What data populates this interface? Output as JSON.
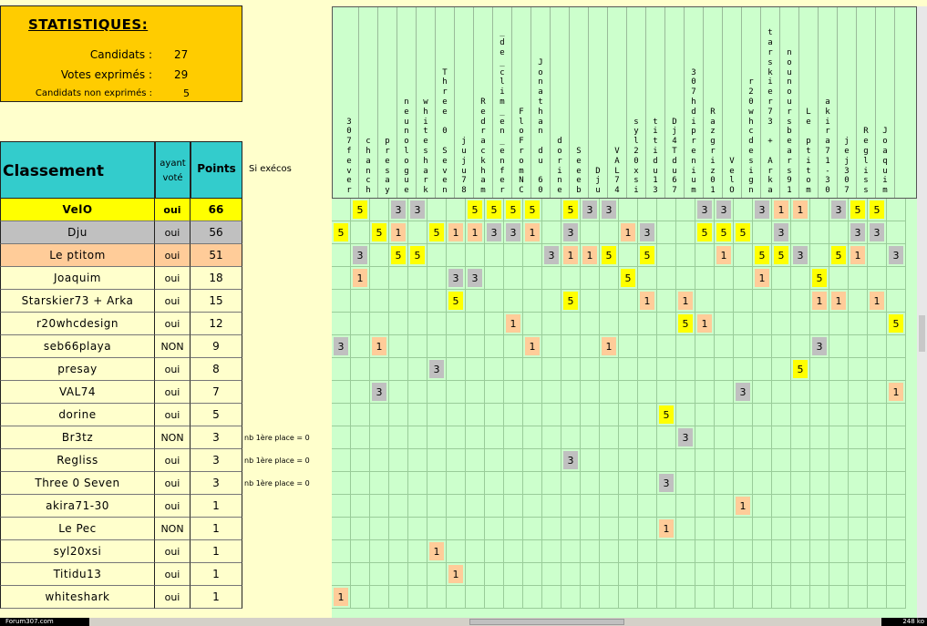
{
  "stats": {
    "title": "STATISTIQUES:",
    "rows": [
      {
        "label": "Candidats :",
        "value": "27"
      },
      {
        "label": "Votes exprimés :",
        "value": "29"
      },
      {
        "label": "Candidats non exprimés :",
        "value": "5"
      }
    ]
  },
  "ranking": {
    "headers": {
      "name": "Classement",
      "voted_line1": "ayant",
      "voted_line2": "voté",
      "points": "Points",
      "side": "Si exécos"
    },
    "tie_note": "nb 1ère place = 0",
    "rows": [
      {
        "name": "VelO",
        "voted": "oui",
        "points": "66",
        "bg": "#ffff00",
        "tie": false
      },
      {
        "name": "Dju",
        "voted": "oui",
        "points": "56",
        "bg": "#c0c0c0",
        "tie": false
      },
      {
        "name": "Le ptitom",
        "voted": "oui",
        "points": "51",
        "bg": "#ffcc99",
        "tie": false
      },
      {
        "name": "Joaquim",
        "voted": "oui",
        "points": "18",
        "bg": "#ffffcc",
        "tie": false
      },
      {
        "name": "Starskier73 + Arka",
        "voted": "oui",
        "points": "15",
        "bg": "#ffffcc",
        "tie": false
      },
      {
        "name": "r20whcdesign",
        "voted": "oui",
        "points": "12",
        "bg": "#ffffcc",
        "tie": false
      },
      {
        "name": "seb66playa",
        "voted": "NON",
        "points": "9",
        "bg": "#ffffcc",
        "tie": false
      },
      {
        "name": "presay",
        "voted": "oui",
        "points": "8",
        "bg": "#ffffcc",
        "tie": false
      },
      {
        "name": "VAL74",
        "voted": "oui",
        "points": "7",
        "bg": "#ffffcc",
        "tie": false
      },
      {
        "name": "dorine",
        "voted": "oui",
        "points": "5",
        "bg": "#ffffcc",
        "tie": false
      },
      {
        "name": "Br3tz",
        "voted": "NON",
        "points": "3",
        "bg": "#ffffcc",
        "tie": true
      },
      {
        "name": "Regliss",
        "voted": "oui",
        "points": "3",
        "bg": "#ffffcc",
        "tie": true
      },
      {
        "name": "Three 0 Seven",
        "voted": "oui",
        "points": "3",
        "bg": "#ffffcc",
        "tie": true
      },
      {
        "name": "akira71-30",
        "voted": "oui",
        "points": "1",
        "bg": "#ffffcc",
        "tie": false
      },
      {
        "name": "Le Pec",
        "voted": "NON",
        "points": "1",
        "bg": "#ffffcc",
        "tie": false
      },
      {
        "name": "syl20xsi",
        "voted": "oui",
        "points": "1",
        "bg": "#ffffcc",
        "tie": false
      },
      {
        "name": "Titidu13",
        "voted": "oui",
        "points": "1",
        "bg": "#ffffcc",
        "tie": false
      },
      {
        "name": "whiteshark",
        "voted": "oui",
        "points": "1",
        "bg": "#ffffcc",
        "tie": false
      }
    ]
  },
  "voters": [
    "307fever",
    "chanch",
    "presay",
    "neunologue",
    "whiteshark",
    "Three 0 Seven",
    "juju78",
    "Redrackham",
    "_de_clim_en_enfer",
    "FloFromNC",
    "Jonathan du 60",
    "dorine",
    "Seeeb",
    "Dju",
    "VAL74",
    "syl20xsi",
    "titidu13",
    "Dj4Tdu67",
    "307hdiprenium",
    "Razgriz01",
    "VelO",
    "r20whcdesign",
    "tarskier73 + Arka",
    "nounoursbears91",
    "Le ptitom",
    "akira71-30",
    "jej307",
    "Regliss",
    "Joaquim"
  ],
  "votes": [
    [
      [
        1,
        5
      ],
      [
        3,
        3
      ],
      [
        4,
        3
      ],
      [
        7,
        5
      ],
      [
        8,
        5
      ],
      [
        9,
        5
      ],
      [
        10,
        5
      ],
      [
        12,
        5
      ],
      [
        13,
        3
      ],
      [
        14,
        3
      ],
      [
        19,
        3
      ],
      [
        20,
        3
      ],
      [
        22,
        3
      ],
      [
        23,
        1
      ],
      [
        24,
        1
      ],
      [
        26,
        3
      ],
      [
        27,
        5
      ],
      [
        28,
        5
      ]
    ],
    [
      [
        0,
        5
      ],
      [
        2,
        5
      ],
      [
        3,
        1
      ],
      [
        5,
        5
      ],
      [
        6,
        1
      ],
      [
        7,
        1
      ],
      [
        8,
        3
      ],
      [
        9,
        3
      ],
      [
        10,
        1
      ],
      [
        12,
        3
      ],
      [
        15,
        1
      ],
      [
        16,
        3
      ],
      [
        19,
        5
      ],
      [
        20,
        5
      ],
      [
        21,
        5
      ],
      [
        23,
        3
      ],
      [
        27,
        3
      ],
      [
        28,
        3
      ]
    ],
    [
      [
        1,
        3
      ],
      [
        3,
        5
      ],
      [
        4,
        5
      ],
      [
        11,
        3
      ],
      [
        12,
        1
      ],
      [
        13,
        1
      ],
      [
        14,
        5
      ],
      [
        16,
        5
      ],
      [
        20,
        1
      ],
      [
        22,
        5
      ],
      [
        23,
        5
      ],
      [
        24,
        3
      ],
      [
        26,
        5
      ],
      [
        27,
        1
      ],
      [
        29,
        3
      ]
    ],
    [
      [
        1,
        1
      ],
      [
        6,
        3
      ],
      [
        7,
        3
      ],
      [
        15,
        5
      ],
      [
        22,
        1
      ],
      [
        25,
        5
      ]
    ],
    [
      [
        6,
        5
      ],
      [
        12,
        5
      ],
      [
        16,
        1
      ],
      [
        18,
        1
      ],
      [
        25,
        1
      ],
      [
        26,
        1
      ],
      [
        28,
        1
      ]
    ],
    [
      [
        9,
        1
      ],
      [
        18,
        5
      ],
      [
        19,
        1
      ],
      [
        29,
        5
      ]
    ],
    [
      [
        0,
        3
      ],
      [
        2,
        1
      ],
      [
        10,
        1
      ],
      [
        14,
        1
      ],
      [
        25,
        3
      ]
    ],
    [
      [
        5,
        3
      ],
      [
        24,
        5
      ]
    ],
    [
      [
        2,
        3
      ],
      [
        21,
        3
      ],
      [
        29,
        1
      ]
    ],
    [
      [
        17,
        5
      ]
    ],
    [
      [
        18,
        3
      ]
    ],
    [
      [
        12,
        3
      ]
    ],
    [
      [
        17,
        3
      ]
    ],
    [
      [
        21,
        1
      ]
    ],
    [
      [
        17,
        1
      ]
    ],
    [
      [
        5,
        1
      ]
    ],
    [
      [
        6,
        1
      ]
    ],
    [
      [
        0,
        1
      ]
    ]
  ],
  "colors": {
    "5": "#ffff00",
    "3": "#c0c0c0",
    "1": "#ffcc99",
    "grid_bg": "#ccffcc",
    "header_bg": "#33cccc",
    "stats_bg": "#ffcc00"
  },
  "status": {
    "left": "Forum307.com",
    "right": "248 ko"
  }
}
